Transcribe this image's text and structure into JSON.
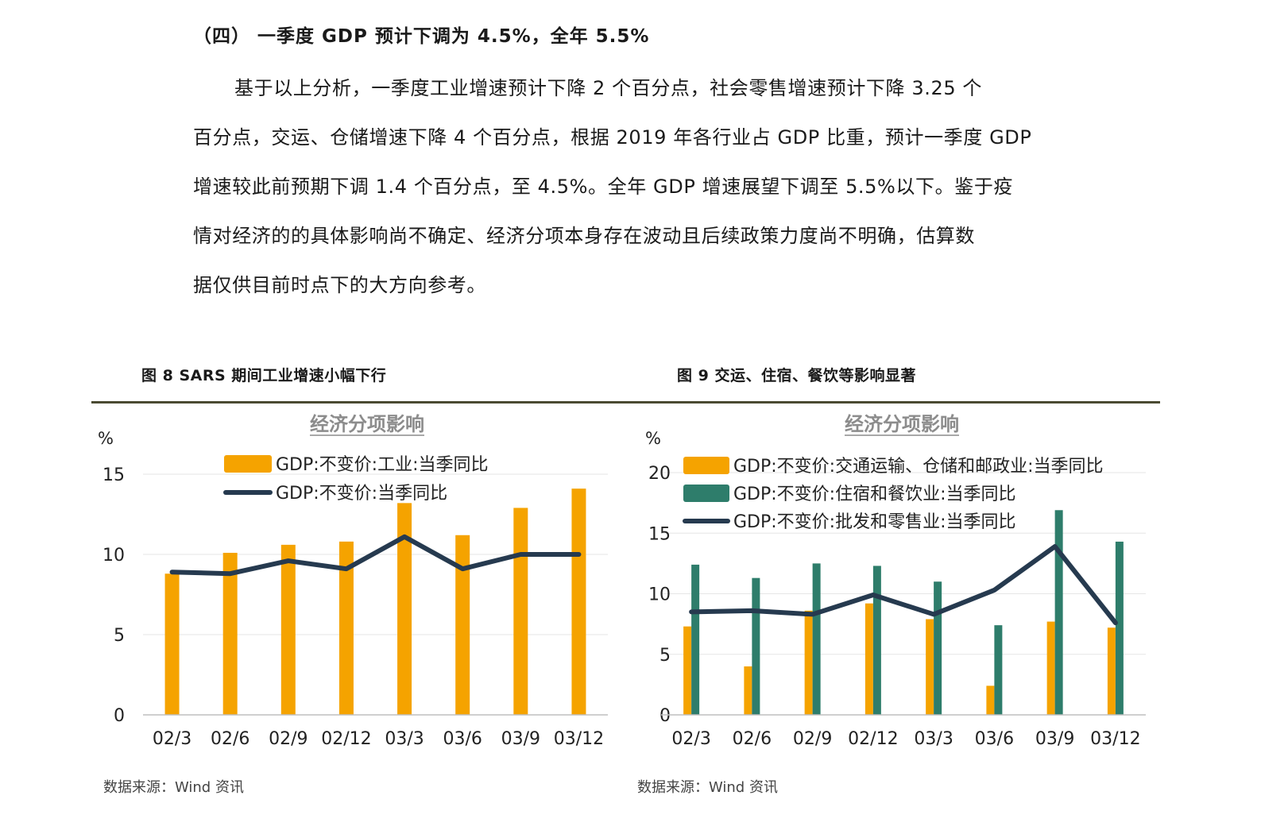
{
  "section_heading": "（四）  一季度 GDP 预计下调为 4.5%，全年 5.5%",
  "paragraph_lines": [
    "基于以上分析，一季度工业增速预计下降 2 个百分点，社会零售增速预计下降 3.25 个",
    "百分点，交运、仓储增速下降 4 个百分点，根据 2019 年各行业占 GDP 比重，预计一季度 GDP",
    "增速较此前预期下调 1.4 个百分点，至 4.5%。全年 GDP 增速展望下调至 5.5%以下。鉴于疫",
    "情对经济的的具体影响尚不确定、经济分项本身存在波动且后续政策力度尚不明确，估算数",
    "据仅供目前时点下的大方向参考。"
  ],
  "figure8": {
    "title": "图 8  SARS 期间工业增速小幅下行",
    "source": "数据来源：Wind 资讯"
  },
  "figure9": {
    "title": "图 9  交运、住宿、餐饮等影响显著",
    "source": "数据来源：Wind 资讯"
  },
  "colors": {
    "orange": "#F5A300",
    "green": "#2E7D6B",
    "navy": "#263A4F",
    "grid": "#E6E6E6",
    "rule": "#4a4a32"
  },
  "chart_data": [
    {
      "type": "bar",
      "title": "经济分项影响",
      "ylabel": "%",
      "ylim": [
        0,
        15
      ],
      "yticks": [
        0,
        5,
        10,
        15
      ],
      "categories": [
        "02/3",
        "02/6",
        "02/9",
        "02/12",
        "03/3",
        "03/6",
        "03/9",
        "03/12"
      ],
      "series": [
        {
          "name": "GDP:不变价:工业:当季同比",
          "kind": "bar",
          "color": "#F5A300",
          "values": [
            8.8,
            10.1,
            10.6,
            10.8,
            13.2,
            11.2,
            12.9,
            14.1
          ]
        },
        {
          "name": "GDP:不变价:当季同比",
          "kind": "line",
          "color": "#263A4F",
          "values": [
            8.9,
            8.8,
            9.6,
            9.1,
            11.1,
            9.1,
            10.0,
            10.0
          ]
        }
      ],
      "legend_position": "top"
    },
    {
      "type": "bar",
      "title": "经济分项影响",
      "ylabel": "%",
      "ylim": [
        0,
        20
      ],
      "yticks": [
        0,
        5,
        10,
        15,
        20
      ],
      "categories": [
        "02/3",
        "02/6",
        "02/9",
        "02/12",
        "03/3",
        "03/6",
        "03/9",
        "03/12"
      ],
      "series": [
        {
          "name": "GDP:不变价:交通运输、仓储和邮政业:当季同比",
          "kind": "bar",
          "color": "#F5A300",
          "values": [
            7.3,
            4.0,
            8.6,
            9.2,
            7.9,
            2.4,
            7.7,
            7.2
          ]
        },
        {
          "name": "GDP:不变价:住宿和餐饮业:当季同比",
          "kind": "bar",
          "color": "#2E7D6B",
          "values": [
            12.4,
            11.3,
            12.5,
            12.3,
            11.0,
            7.4,
            16.9,
            14.3
          ]
        },
        {
          "name": "GDP:不变价:批发和零售业:当季同比",
          "kind": "line",
          "color": "#263A4F",
          "values": [
            8.5,
            8.6,
            8.3,
            9.9,
            8.3,
            10.3,
            13.9,
            7.6
          ]
        }
      ],
      "legend_position": "top"
    }
  ]
}
